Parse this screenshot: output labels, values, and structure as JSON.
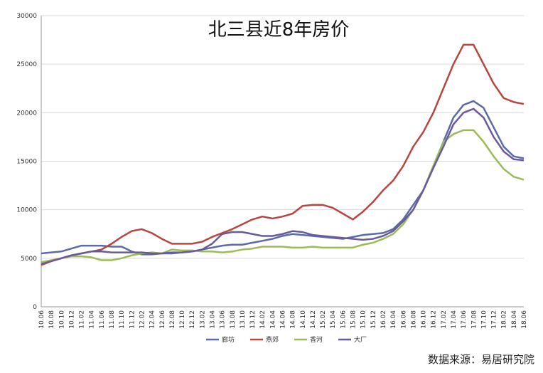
{
  "chart_data": {
    "type": "line",
    "title": "北三县近8年房价",
    "source": "数据来源：易居研究院",
    "categories": [
      "10.06",
      "10.08",
      "10.10",
      "10.12",
      "11.02",
      "11.04",
      "11.06",
      "11.08",
      "11.10",
      "11.12",
      "12.02",
      "12.04",
      "12.06",
      "12.08",
      "12.10",
      "12.12",
      "13.02",
      "13.04",
      "13.06",
      "13.08",
      "13.10",
      "13.12",
      "14.02",
      "14.04",
      "14.06",
      "14.08",
      "14.10",
      "14.12",
      "15.02",
      "15.04",
      "15.06",
      "15.08",
      "15.10",
      "15.12",
      "16.02",
      "16.04",
      "16.06",
      "16.08",
      "16.10",
      "16.12",
      "17.02",
      "17.04",
      "17.06",
      "17.08",
      "17.10",
      "17.12",
      "18.02",
      "18.04",
      "18.06"
    ],
    "series": [
      {
        "name": "廊坊",
        "color": "#5b6aa8",
        "values": [
          5500,
          5600,
          5700,
          6000,
          6300,
          6300,
          6300,
          6200,
          6200,
          5700,
          5400,
          5400,
          5500,
          5500,
          5600,
          5700,
          5900,
          6100,
          6300,
          6400,
          6400,
          6600,
          6800,
          7000,
          7300,
          7500,
          7400,
          7300,
          7200,
          7100,
          7000,
          7200,
          7400,
          7500,
          7600,
          8000,
          9000,
          10500,
          12000,
          14500,
          17000,
          19500,
          20800,
          21200,
          20500,
          18500,
          16500,
          15500,
          15300
        ]
      },
      {
        "name": "燕郊",
        "color": "#b8453f",
        "values": [
          4300,
          4700,
          5000,
          5300,
          5500,
          5700,
          5900,
          6500,
          7200,
          7800,
          8000,
          7600,
          7000,
          6500,
          6500,
          6500,
          6700,
          7200,
          7600,
          8000,
          8500,
          9000,
          9300,
          9100,
          9300,
          9600,
          10400,
          10500,
          10500,
          10200,
          9600,
          9000,
          9800,
          10800,
          12000,
          13000,
          14500,
          16500,
          18000,
          20000,
          22500,
          25000,
          27000,
          27000,
          25000,
          23000,
          21500,
          21100,
          20900
        ]
      },
      {
        "name": "香河",
        "color": "#9bbb59",
        "values": [
          4600,
          4800,
          5000,
          5200,
          5200,
          5100,
          4800,
          4800,
          5000,
          5300,
          5500,
          5600,
          5500,
          5900,
          5800,
          5800,
          5700,
          5700,
          5600,
          5700,
          5900,
          6000,
          6200,
          6200,
          6200,
          6100,
          6100,
          6200,
          6100,
          6100,
          6100,
          6100,
          6400,
          6600,
          7000,
          7500,
          8500,
          10000,
          12000,
          14500,
          17000,
          17800,
          18200,
          18200,
          17000,
          15500,
          14200,
          13400,
          13100
        ]
      },
      {
        "name": "大厂",
        "color": "#6a5a9c",
        "values": [
          4400,
          4700,
          5000,
          5300,
          5500,
          5700,
          5700,
          5600,
          5600,
          5600,
          5600,
          5500,
          5500,
          5600,
          5600,
          5700,
          5900,
          6500,
          7500,
          7700,
          7700,
          7500,
          7300,
          7300,
          7500,
          7800,
          7700,
          7400,
          7300,
          7200,
          7100,
          7000,
          6900,
          7000,
          7300,
          7800,
          8800,
          10000,
          12000,
          14300,
          16500,
          18800,
          20000,
          20400,
          19500,
          17500,
          16000,
          15200,
          15100
        ]
      }
    ],
    "ylim": [
      0,
      30000
    ],
    "yticks": [
      0,
      5000,
      10000,
      15000,
      20000,
      25000,
      30000
    ],
    "grid": true
  }
}
